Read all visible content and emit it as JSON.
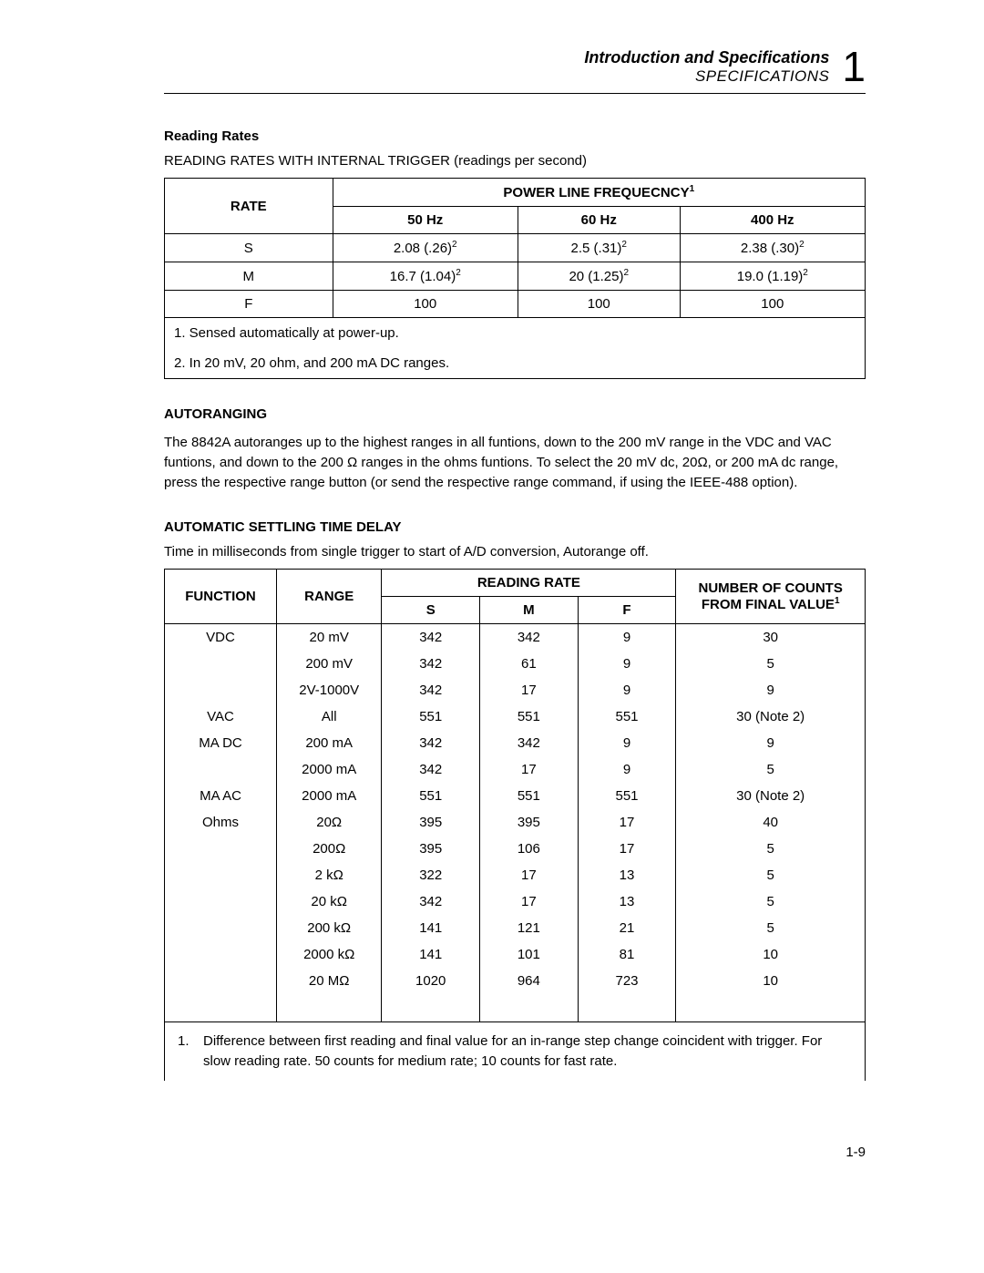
{
  "header": {
    "title": "Introduction and Specifications",
    "subtitle": "SPECIFICATIONS",
    "chapter": "1"
  },
  "reading_rates": {
    "heading": "Reading Rates",
    "caption": "READING RATES WITH INTERNAL TRIGGER (readings per second)",
    "col_rate": "RATE",
    "col_power": "POWER LINE FREQUECNCY",
    "col_power_sup": "1",
    "subcols": [
      "50 Hz",
      "60 Hz",
      "400 Hz"
    ],
    "rows": [
      {
        "rate": "S",
        "c50": "2.08 (.26)",
        "c50s": "2",
        "c60": "2.5 (.31)",
        "c60s": "2",
        "c400": "2.38 (.30)",
        "c400s": "2"
      },
      {
        "rate": "M",
        "c50": "16.7 (1.04)",
        "c50s": "2",
        "c60": "20 (1.25)",
        "c60s": "2",
        "c400": "19.0 (1.19)",
        "c400s": "2"
      },
      {
        "rate": "F",
        "c50": "100",
        "c50s": "",
        "c60": "100",
        "c60s": "",
        "c400": "100",
        "c400s": ""
      }
    ],
    "note1": "1. Sensed automatically at power-up.",
    "note2": "2. In 20 mV, 20 ohm, and 200 mA DC ranges."
  },
  "autoranging": {
    "heading": "AUTORANGING",
    "text": "The 8842A autoranges up to the highest ranges in all funtions, down to the 200 mV range in the VDC and VAC funtions, and down to the 200 Ω ranges in the ohms funtions. To select the 20 mV dc, 20Ω, or 200 mA dc range, press the respective range button (or send the respective range command, if using the IEEE-488 option)."
  },
  "settling": {
    "heading": "AUTOMATIC SETTLING TIME DELAY",
    "caption": "Time in milliseconds from single trigger to start of A/D conversion, Autorange off.",
    "cols": {
      "function": "FUNCTION",
      "range": "RANGE",
      "reading_rate": "READING RATE",
      "counts": "NUMBER OF COUNTS",
      "from_final": "FROM FINAL VALUE",
      "from_final_sup": "1",
      "s": "S",
      "m": "M",
      "f": "F"
    },
    "rows": [
      {
        "fn": "VDC",
        "rg": "20 mV",
        "s": "342",
        "m": "342",
        "f": "9",
        "cnt": "30"
      },
      {
        "fn": "",
        "rg": "200 mV",
        "s": "342",
        "m": "61",
        "f": "9",
        "cnt": "5"
      },
      {
        "fn": "",
        "rg": "2V-1000V",
        "s": "342",
        "m": "17",
        "f": "9",
        "cnt": "9"
      },
      {
        "fn": "VAC",
        "rg": "All",
        "s": "551",
        "m": "551",
        "f": "551",
        "cnt": "30 (Note 2)"
      },
      {
        "fn": "MA DC",
        "rg": "200 mA",
        "s": "342",
        "m": "342",
        "f": "9",
        "cnt": "9"
      },
      {
        "fn": "",
        "rg": "2000 mA",
        "s": "342",
        "m": "17",
        "f": "9",
        "cnt": "5"
      },
      {
        "fn": "MA AC",
        "rg": "2000 mA",
        "s": "551",
        "m": "551",
        "f": "551",
        "cnt": "30 (Note 2)"
      },
      {
        "fn": "Ohms",
        "rg": "20Ω",
        "s": "395",
        "m": "395",
        "f": "17",
        "cnt": "40"
      },
      {
        "fn": "",
        "rg": "200Ω",
        "s": "395",
        "m": "106",
        "f": "17",
        "cnt": "5"
      },
      {
        "fn": "",
        "rg": "2 kΩ",
        "s": "322",
        "m": "17",
        "f": "13",
        "cnt": "5"
      },
      {
        "fn": "",
        "rg": "20 kΩ",
        "s": "342",
        "m": "17",
        "f": "13",
        "cnt": "5"
      },
      {
        "fn": "",
        "rg": "200 kΩ",
        "s": "141",
        "m": "121",
        "f": "21",
        "cnt": "5"
      },
      {
        "fn": "",
        "rg": "2000 kΩ",
        "s": "141",
        "m": "101",
        "f": "81",
        "cnt": "10"
      },
      {
        "fn": "",
        "rg": "20 MΩ",
        "s": "1020",
        "m": "964",
        "f": "723",
        "cnt": "10"
      }
    ],
    "footnote_num": "1.",
    "footnote": "Difference between first reading and final value for an in-range step change coincident with trigger. For slow reading rate. 50 counts for medium rate; 10 counts for fast rate."
  },
  "page_number": "1-9"
}
